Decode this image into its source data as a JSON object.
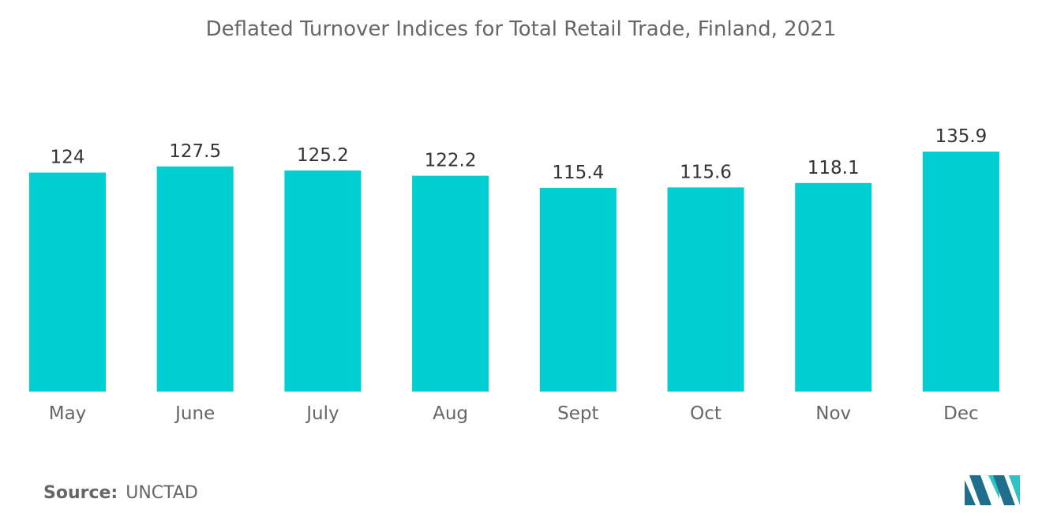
{
  "colors": {
    "bar": "#00ced1",
    "text": "#666666",
    "value_label": "#333333",
    "logo_dark": "#1f6e8c",
    "logo_light": "#2ec4c7"
  },
  "source": {
    "label": "Source:",
    "value": "UNCTAD"
  },
  "logo": {
    "icon": "mordor-intelligence-logo-icon"
  },
  "chart_data": {
    "type": "bar",
    "title": "Deflated Turnover Indices for Total Retail Trade, Finland, 2021",
    "xlabel": "",
    "ylabel": "",
    "categories": [
      "May",
      "June",
      "July",
      "Aug",
      "Sept",
      "Oct",
      "Nov",
      "Dec"
    ],
    "values": [
      124,
      127.5,
      125.2,
      122.2,
      115.4,
      115.6,
      118.1,
      135.9
    ],
    "data_labels": [
      "124",
      "127.5",
      "125.2",
      "122.2",
      "115.4",
      "115.6",
      "118.1",
      "135.9"
    ],
    "ylim": [
      0,
      135.9
    ],
    "grid": false,
    "legend": "none"
  }
}
